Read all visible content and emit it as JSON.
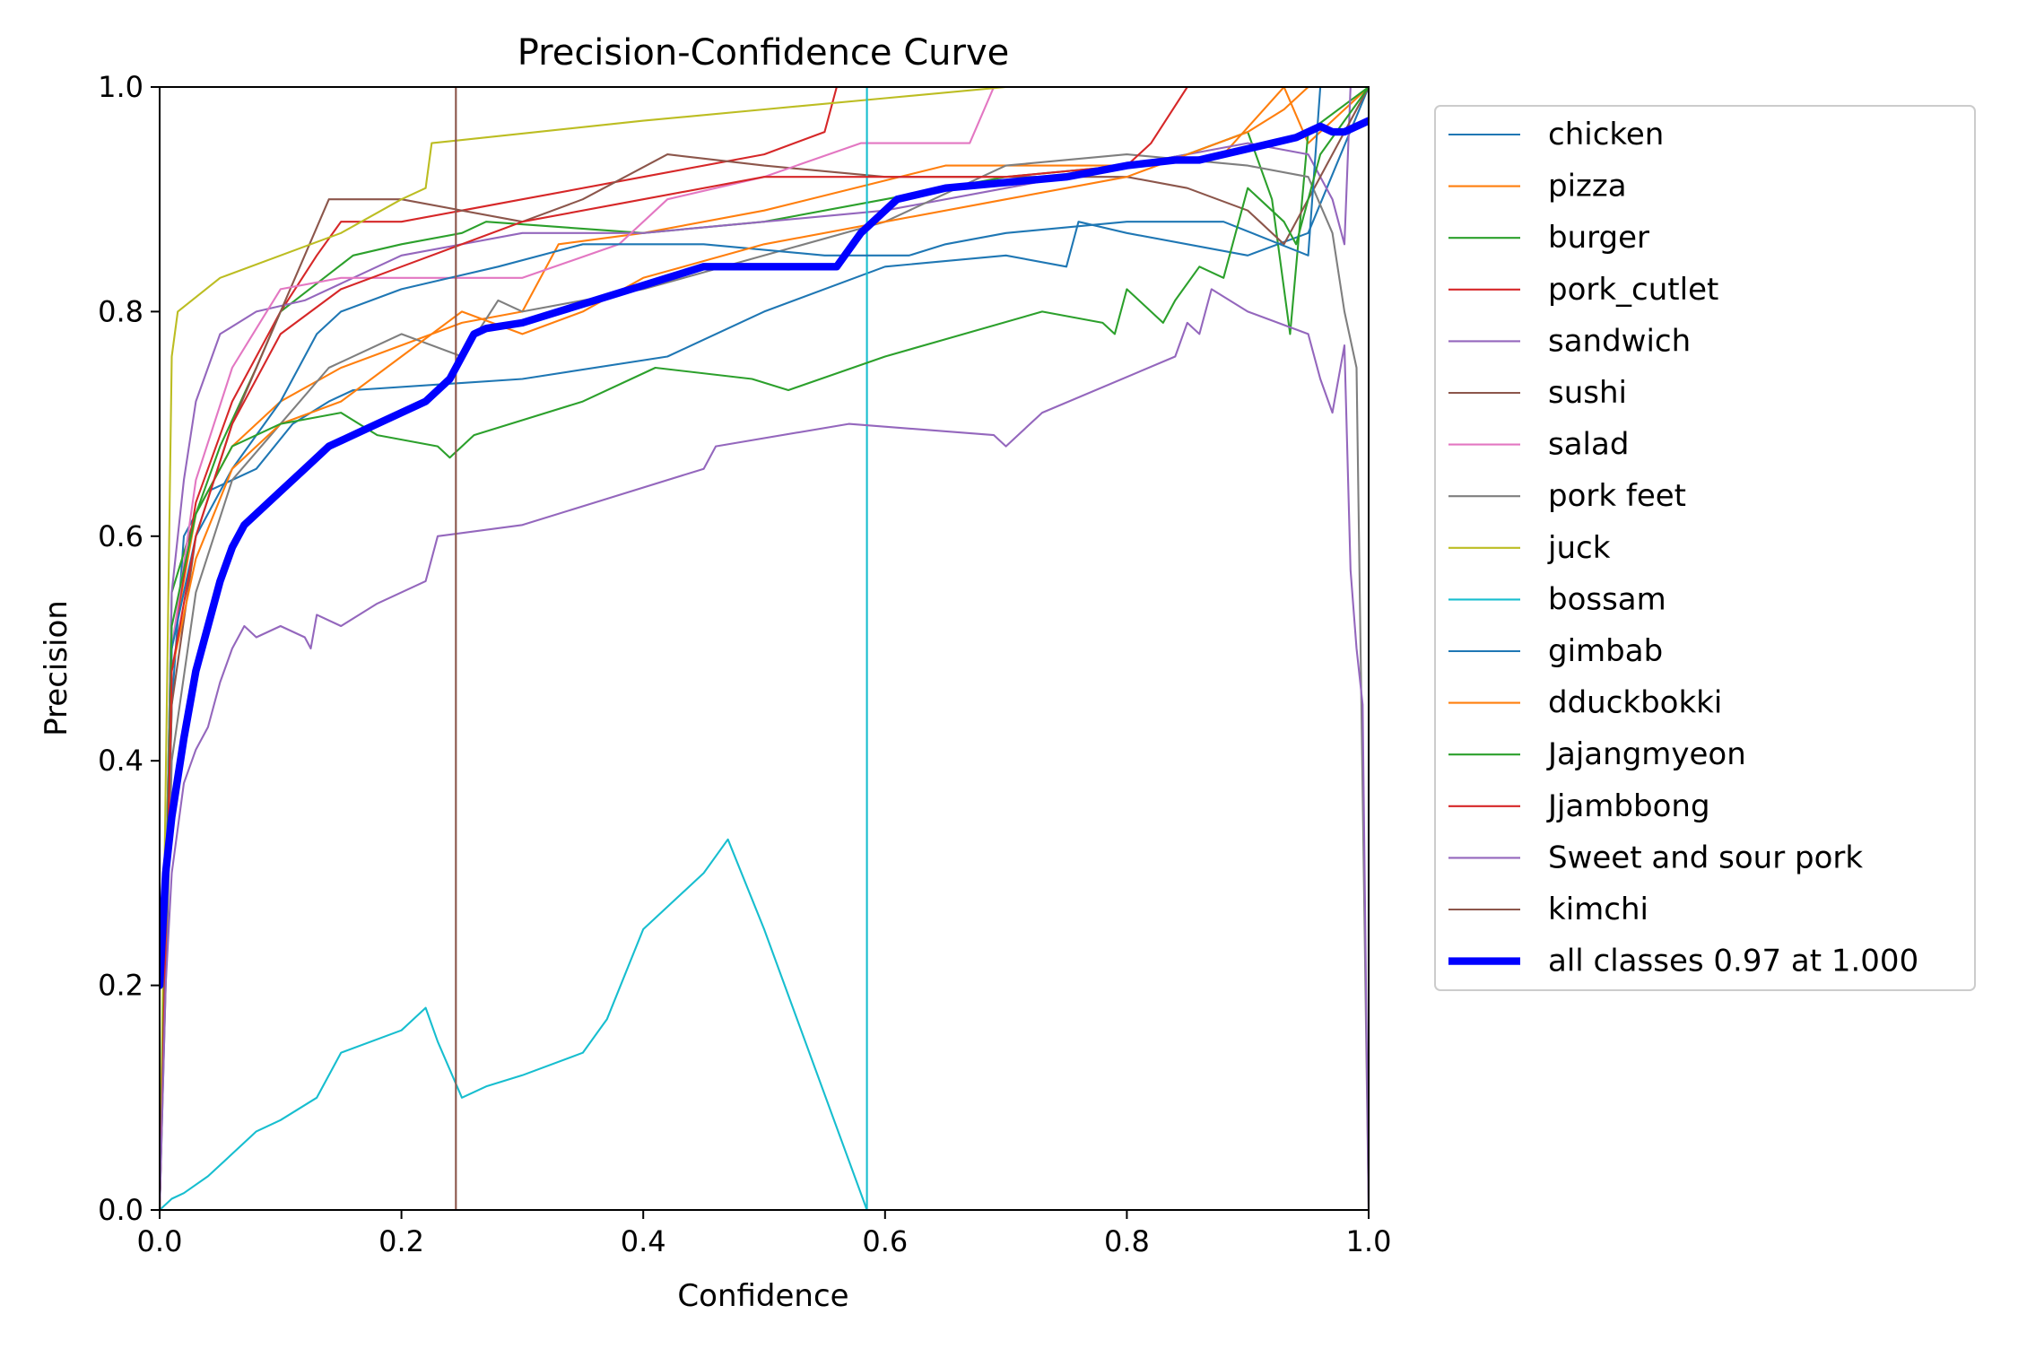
{
  "chart_data": {
    "type": "line",
    "title": "Precision-Confidence Curve",
    "xlabel": "Confidence",
    "ylabel": "Precision",
    "xlim": [
      0.0,
      1.0
    ],
    "ylim": [
      0.0,
      1.0
    ],
    "xticks": [
      0.0,
      0.2,
      0.4,
      0.6,
      0.8,
      1.0
    ],
    "yticks": [
      0.0,
      0.2,
      0.4,
      0.6,
      0.8,
      1.0
    ],
    "xtick_labels": [
      "0.0",
      "0.2",
      "0.4",
      "0.6",
      "0.8",
      "1.0"
    ],
    "ytick_labels": [
      "0.0",
      "0.2",
      "0.4",
      "0.6",
      "0.8",
      "1.0"
    ],
    "grid": false,
    "legend_position": "outside-right",
    "series": [
      {
        "name": "chicken",
        "color": "#1f77b4",
        "width": 1.5,
        "x": [
          0.0,
          0.01,
          0.02,
          0.04,
          0.08,
          0.11,
          0.14,
          0.16,
          0.3,
          0.42,
          0.5,
          0.6,
          0.7,
          0.75,
          0.76,
          0.8,
          0.9,
          0.95,
          1.0
        ],
        "y": [
          0.0,
          0.45,
          0.6,
          0.64,
          0.66,
          0.7,
          0.72,
          0.73,
          0.74,
          0.76,
          0.8,
          0.84,
          0.85,
          0.84,
          0.88,
          0.87,
          0.85,
          0.87,
          1.0
        ]
      },
      {
        "name": "pizza",
        "color": "#ff7f0e",
        "width": 1.5,
        "x": [
          0.0,
          0.01,
          0.03,
          0.06,
          0.1,
          0.15,
          0.2,
          0.25,
          0.3,
          0.33,
          0.4,
          0.5,
          0.65,
          0.8,
          0.88,
          0.93,
          0.95,
          1.0
        ],
        "y": [
          0.0,
          0.5,
          0.62,
          0.68,
          0.72,
          0.75,
          0.77,
          0.79,
          0.8,
          0.86,
          0.87,
          0.89,
          0.93,
          0.93,
          0.94,
          1.0,
          0.95,
          1.0
        ]
      },
      {
        "name": "burger",
        "color": "#2ca02c",
        "width": 1.5,
        "x": [
          0.0,
          0.01,
          0.03,
          0.05,
          0.08,
          0.1,
          0.16,
          0.2,
          0.25,
          0.27,
          0.4,
          0.5,
          0.6,
          0.7,
          0.8,
          0.85,
          0.9,
          0.92,
          0.935,
          0.95,
          1.0
        ],
        "y": [
          0.0,
          0.55,
          0.62,
          0.68,
          0.75,
          0.8,
          0.85,
          0.86,
          0.87,
          0.88,
          0.87,
          0.88,
          0.9,
          0.92,
          0.93,
          0.94,
          0.96,
          0.9,
          0.78,
          0.96,
          1.0
        ]
      },
      {
        "name": "pork_cutlet",
        "color": "#d62728",
        "width": 1.5,
        "x": [
          0.0,
          0.01,
          0.03,
          0.06,
          0.1,
          0.13,
          0.15,
          0.2,
          0.3,
          0.4,
          0.5,
          0.55,
          0.56,
          0.6,
          1.0
        ],
        "y": [
          0.0,
          0.5,
          0.63,
          0.72,
          0.8,
          0.85,
          0.88,
          0.88,
          0.9,
          0.92,
          0.94,
          0.96,
          1.0,
          1.0,
          1.0
        ]
      },
      {
        "name": "sandwich",
        "color": "#9467bd",
        "width": 1.5,
        "x": [
          0.0,
          0.01,
          0.02,
          0.03,
          0.05,
          0.08,
          0.12,
          0.2,
          0.3,
          0.4,
          0.5,
          0.6,
          0.7,
          0.8,
          0.9,
          0.95,
          0.97,
          0.98,
          0.985,
          0.99,
          1.0
        ],
        "y": [
          0.0,
          0.55,
          0.65,
          0.72,
          0.78,
          0.8,
          0.81,
          0.85,
          0.87,
          0.87,
          0.88,
          0.89,
          0.91,
          0.93,
          0.95,
          0.94,
          0.9,
          0.86,
          1.0,
          1.0,
          1.0
        ]
      },
      {
        "name": "sushi",
        "color": "#8c564b",
        "width": 1.5,
        "x": [
          0.0,
          0.01,
          0.03,
          0.06,
          0.1,
          0.14,
          0.2,
          0.3,
          0.35,
          0.42,
          0.5,
          0.6,
          0.7,
          0.8,
          0.85,
          0.9,
          0.91,
          0.93,
          1.0
        ],
        "y": [
          0.0,
          0.45,
          0.6,
          0.7,
          0.8,
          0.9,
          0.9,
          0.88,
          0.9,
          0.94,
          0.93,
          0.92,
          0.92,
          0.92,
          0.91,
          0.89,
          0.88,
          0.86,
          1.0
        ]
      },
      {
        "name": "salad",
        "color": "#e377c2",
        "width": 1.5,
        "x": [
          0.0,
          0.01,
          0.03,
          0.06,
          0.1,
          0.15,
          0.2,
          0.3,
          0.38,
          0.42,
          0.5,
          0.58,
          0.67,
          0.69,
          1.0
        ],
        "y": [
          0.0,
          0.5,
          0.65,
          0.75,
          0.82,
          0.83,
          0.83,
          0.83,
          0.86,
          0.9,
          0.92,
          0.95,
          0.95,
          1.0,
          1.0
        ]
      },
      {
        "name": "pork feet",
        "color": "#7f7f7f",
        "width": 1.5,
        "x": [
          0.0,
          0.01,
          0.03,
          0.06,
          0.1,
          0.14,
          0.2,
          0.25,
          0.28,
          0.3,
          0.4,
          0.5,
          0.6,
          0.7,
          0.8,
          0.9,
          0.95,
          0.97,
          0.98,
          0.99,
          1.0
        ],
        "y": [
          0.0,
          0.4,
          0.55,
          0.65,
          0.7,
          0.75,
          0.78,
          0.76,
          0.81,
          0.8,
          0.82,
          0.85,
          0.88,
          0.93,
          0.94,
          0.93,
          0.92,
          0.87,
          0.8,
          0.75,
          0.0
        ]
      },
      {
        "name": "juck",
        "color": "#bcbd22",
        "width": 1.5,
        "x": [
          0.0,
          0.01,
          0.015,
          0.05,
          0.15,
          0.2,
          0.22,
          0.225,
          0.4,
          0.5,
          0.6,
          0.7,
          1.0
        ],
        "y": [
          0.0,
          0.76,
          0.8,
          0.83,
          0.87,
          0.9,
          0.91,
          0.95,
          0.97,
          0.98,
          0.99,
          1.0,
          1.0
        ]
      },
      {
        "name": "bossam",
        "color": "#17becf",
        "width": 1.5,
        "x": [
          0.0,
          0.01,
          0.02,
          0.04,
          0.06,
          0.08,
          0.1,
          0.13,
          0.15,
          0.2,
          0.22,
          0.23,
          0.25,
          0.27,
          0.3,
          0.35,
          0.37,
          0.4,
          0.45,
          0.47,
          0.5,
          0.585,
          0.585,
          0.585
        ],
        "y": [
          0.0,
          0.01,
          0.015,
          0.03,
          0.05,
          0.07,
          0.08,
          0.1,
          0.14,
          0.16,
          0.18,
          0.15,
          0.1,
          0.11,
          0.12,
          0.14,
          0.17,
          0.25,
          0.3,
          0.33,
          0.25,
          0.0,
          1.0,
          0.0
        ]
      },
      {
        "name": "gimbab",
        "color": "#1f77b4",
        "width": 1.5,
        "x": [
          0.0,
          0.01,
          0.03,
          0.06,
          0.1,
          0.13,
          0.15,
          0.2,
          0.28,
          0.35,
          0.45,
          0.55,
          0.62,
          0.65,
          0.7,
          0.8,
          0.88,
          0.95,
          0.96,
          1.0
        ],
        "y": [
          0.0,
          0.5,
          0.6,
          0.66,
          0.72,
          0.78,
          0.8,
          0.82,
          0.84,
          0.86,
          0.86,
          0.85,
          0.85,
          0.86,
          0.87,
          0.88,
          0.88,
          0.85,
          1.0,
          1.0
        ]
      },
      {
        "name": "dduckbokki",
        "color": "#ff7f0e",
        "width": 1.5,
        "x": [
          0.0,
          0.01,
          0.03,
          0.06,
          0.1,
          0.15,
          0.2,
          0.25,
          0.3,
          0.35,
          0.4,
          0.5,
          0.6,
          0.7,
          0.8,
          0.9,
          0.93,
          0.95,
          1.0
        ],
        "y": [
          0.0,
          0.48,
          0.58,
          0.66,
          0.7,
          0.72,
          0.76,
          0.8,
          0.78,
          0.8,
          0.83,
          0.86,
          0.88,
          0.9,
          0.92,
          0.96,
          0.98,
          1.0,
          1.0
        ]
      },
      {
        "name": "Jajangmyeon",
        "color": "#2ca02c",
        "width": 1.5,
        "x": [
          0.0,
          0.01,
          0.03,
          0.06,
          0.1,
          0.15,
          0.18,
          0.23,
          0.24,
          0.26,
          0.35,
          0.41,
          0.49,
          0.52,
          0.6,
          0.73,
          0.78,
          0.79,
          0.8,
          0.81,
          0.83,
          0.84,
          0.86,
          0.88,
          0.9,
          0.91,
          0.93,
          0.94,
          0.96,
          1.0
        ],
        "y": [
          0.0,
          0.52,
          0.62,
          0.68,
          0.7,
          0.71,
          0.69,
          0.68,
          0.67,
          0.69,
          0.72,
          0.75,
          0.74,
          0.73,
          0.76,
          0.8,
          0.79,
          0.78,
          0.82,
          0.81,
          0.79,
          0.81,
          0.84,
          0.83,
          0.91,
          0.9,
          0.88,
          0.86,
          0.94,
          1.0
        ]
      },
      {
        "name": "Jjambbong",
        "color": "#d62728",
        "width": 1.5,
        "x": [
          0.0,
          0.01,
          0.03,
          0.06,
          0.1,
          0.15,
          0.2,
          0.3,
          0.4,
          0.5,
          0.6,
          0.7,
          0.8,
          0.82,
          0.85,
          1.0
        ],
        "y": [
          0.0,
          0.48,
          0.6,
          0.7,
          0.78,
          0.82,
          0.84,
          0.88,
          0.9,
          0.92,
          0.92,
          0.92,
          0.93,
          0.95,
          1.0,
          1.0
        ]
      },
      {
        "name": "Sweet and sour pork",
        "color": "#9467bd",
        "width": 1.5,
        "x": [
          0.0,
          0.005,
          0.01,
          0.02,
          0.03,
          0.04,
          0.05,
          0.06,
          0.07,
          0.08,
          0.1,
          0.12,
          0.125,
          0.13,
          0.15,
          0.18,
          0.2,
          0.22,
          0.23,
          0.3,
          0.36,
          0.45,
          0.46,
          0.57,
          0.69,
          0.7,
          0.73,
          0.84,
          0.85,
          0.86,
          0.87,
          0.9,
          0.95,
          0.96,
          0.97,
          0.98,
          0.985,
          0.99,
          0.995,
          1.0
        ],
        "y": [
          0.0,
          0.2,
          0.3,
          0.38,
          0.41,
          0.43,
          0.47,
          0.5,
          0.52,
          0.51,
          0.52,
          0.51,
          0.5,
          0.53,
          0.52,
          0.54,
          0.55,
          0.56,
          0.6,
          0.61,
          0.63,
          0.66,
          0.68,
          0.7,
          0.69,
          0.68,
          0.71,
          0.76,
          0.79,
          0.78,
          0.82,
          0.8,
          0.78,
          0.74,
          0.71,
          0.77,
          0.57,
          0.5,
          0.45,
          0.0
        ]
      },
      {
        "name": "kimchi",
        "color": "#8c564b",
        "width": 1.5,
        "x": [
          0.0,
          0.245,
          0.245,
          0.245
        ],
        "y": [
          0.0,
          0.0,
          1.0,
          0.0
        ]
      },
      {
        "name": "all classes 0.97 at 1.000",
        "color": "#0000ff",
        "width": 6,
        "x": [
          0.0,
          0.005,
          0.01,
          0.02,
          0.03,
          0.04,
          0.05,
          0.06,
          0.07,
          0.08,
          0.1,
          0.12,
          0.14,
          0.16,
          0.18,
          0.2,
          0.22,
          0.24,
          0.26,
          0.27,
          0.3,
          0.33,
          0.36,
          0.39,
          0.42,
          0.45,
          0.48,
          0.5,
          0.53,
          0.56,
          0.58,
          0.61,
          0.65,
          0.7,
          0.75,
          0.8,
          0.84,
          0.86,
          0.88,
          0.9,
          0.92,
          0.94,
          0.96,
          0.97,
          0.98,
          1.0
        ],
        "y": [
          0.2,
          0.3,
          0.35,
          0.42,
          0.48,
          0.52,
          0.56,
          0.59,
          0.61,
          0.62,
          0.64,
          0.66,
          0.68,
          0.69,
          0.7,
          0.71,
          0.72,
          0.74,
          0.78,
          0.785,
          0.79,
          0.8,
          0.81,
          0.82,
          0.83,
          0.84,
          0.84,
          0.84,
          0.84,
          0.84,
          0.87,
          0.9,
          0.91,
          0.915,
          0.92,
          0.93,
          0.935,
          0.935,
          0.94,
          0.945,
          0.95,
          0.955,
          0.965,
          0.96,
          0.96,
          0.97
        ]
      }
    ]
  }
}
